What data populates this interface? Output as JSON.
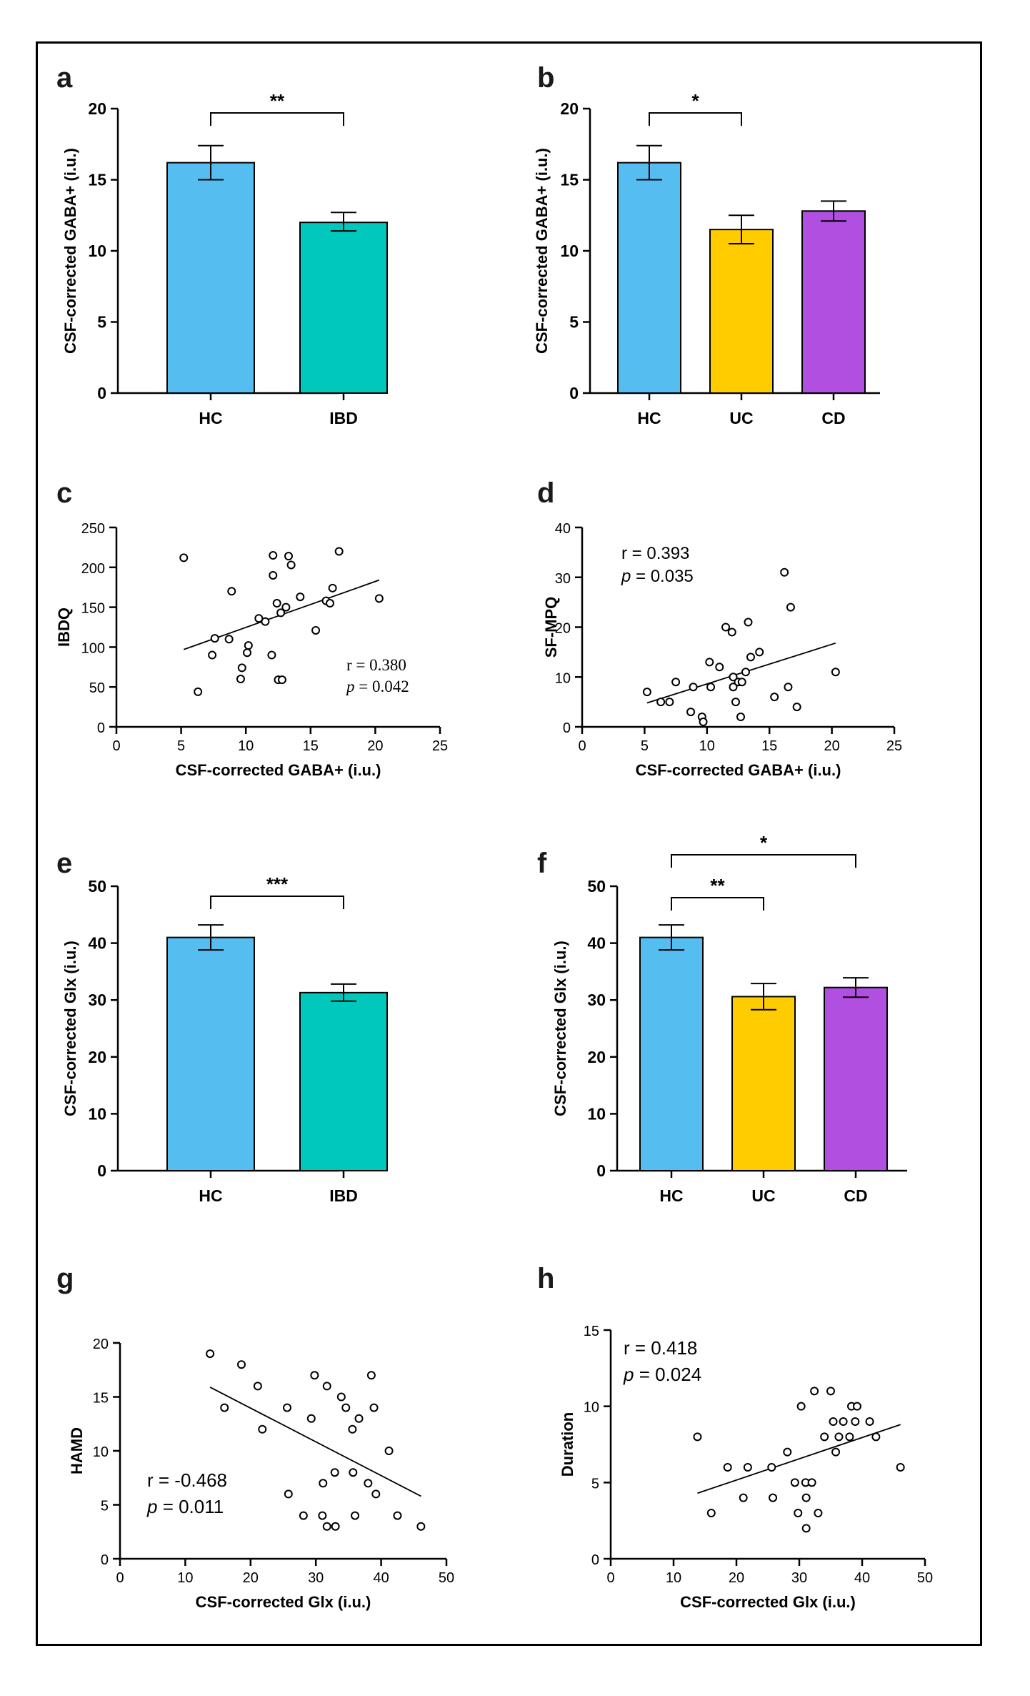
{
  "colors": {
    "HC": "#56bdf0",
    "IBD": "#00c8bc",
    "UC": "#ffcc00",
    "CD": "#b150e0",
    "axis": "#000000"
  },
  "chart_data": [
    {
      "panel": "a",
      "type": "bar",
      "ylabel": "CSF-corrected GABA+ (i.u.)",
      "xlabel": "",
      "ylim": [
        0,
        20
      ],
      "yticks": [
        0,
        5,
        10,
        15,
        20
      ],
      "categories": [
        "HC",
        "IBD"
      ],
      "values": [
        16.2,
        12.0
      ],
      "errors": [
        [
          15.0,
          17.4
        ],
        [
          11.4,
          12.7
        ]
      ],
      "significance": [
        {
          "from": 0,
          "to": 1,
          "label": "**"
        }
      ]
    },
    {
      "panel": "b",
      "type": "bar",
      "ylabel": "CSF-corrected GABA+ (i.u.)",
      "xlabel": "",
      "ylim": [
        0,
        20
      ],
      "yticks": [
        0,
        5,
        10,
        15,
        20
      ],
      "categories": [
        "HC",
        "UC",
        "CD"
      ],
      "values": [
        16.2,
        11.5,
        12.8
      ],
      "errors": [
        [
          15.0,
          17.4
        ],
        [
          10.5,
          12.5
        ],
        [
          12.1,
          13.5
        ]
      ],
      "significance": [
        {
          "from": 0,
          "to": 1,
          "label": "*"
        }
      ]
    },
    {
      "panel": "c",
      "type": "scatter",
      "ylabel": "IBDQ",
      "xlabel": "CSF-corrected GABA+ (i.u.)",
      "xlim": [
        0,
        25
      ],
      "ylim": [
        0,
        250
      ],
      "xticks": [
        0,
        5,
        10,
        15,
        20,
        25
      ],
      "yticks": [
        0,
        50,
        100,
        150,
        200,
        250
      ],
      "r_text": "r = 0.380",
      "p_label": "p",
      "p_value": " = 0.042",
      "stat_font": "serif",
      "points": [
        [
          5.2,
          212
        ],
        [
          6.3,
          44
        ],
        [
          7.4,
          90
        ],
        [
          7.6,
          111
        ],
        [
          8.7,
          110
        ],
        [
          8.9,
          170
        ],
        [
          9.6,
          60
        ],
        [
          9.7,
          74
        ],
        [
          10.1,
          93
        ],
        [
          10.2,
          102
        ],
        [
          11.0,
          136
        ],
        [
          11.5,
          132
        ],
        [
          12.0,
          90
        ],
        [
          12.1,
          215
        ],
        [
          12.1,
          190
        ],
        [
          12.4,
          155
        ],
        [
          12.5,
          59
        ],
        [
          12.7,
          143
        ],
        [
          12.8,
          59
        ],
        [
          13.1,
          150
        ],
        [
          13.3,
          214
        ],
        [
          13.5,
          203
        ],
        [
          14.2,
          163
        ],
        [
          15.4,
          121
        ],
        [
          16.2,
          158
        ],
        [
          16.5,
          155
        ],
        [
          16.7,
          174
        ],
        [
          17.2,
          220
        ],
        [
          20.3,
          161
        ]
      ],
      "fit": [
        [
          5.2,
          97
        ],
        [
          20.3,
          184
        ]
      ]
    },
    {
      "panel": "d",
      "type": "scatter",
      "ylabel": "SF-MPQ",
      "xlabel": "CSF-corrected GABA+ (i.u.)",
      "xlim": [
        0,
        25
      ],
      "ylim": [
        0,
        40
      ],
      "xticks": [
        0,
        5,
        10,
        15,
        20,
        25
      ],
      "yticks": [
        0,
        10,
        20,
        30,
        40
      ],
      "r_text": "r = 0.393",
      "p_label": "p",
      "p_value": " = 0.035",
      "stat_font": "sans-s",
      "points": [
        [
          5.2,
          7
        ],
        [
          6.3,
          5
        ],
        [
          7.0,
          5
        ],
        [
          7.5,
          9
        ],
        [
          8.7,
          3
        ],
        [
          8.9,
          8
        ],
        [
          9.6,
          2
        ],
        [
          9.7,
          1
        ],
        [
          10.2,
          13
        ],
        [
          10.3,
          8
        ],
        [
          11.0,
          12
        ],
        [
          11.5,
          20
        ],
        [
          12.0,
          19
        ],
        [
          12.1,
          10
        ],
        [
          12.1,
          8
        ],
        [
          12.3,
          5
        ],
        [
          12.5,
          9
        ],
        [
          12.7,
          2
        ],
        [
          12.8,
          9
        ],
        [
          13.1,
          11
        ],
        [
          13.3,
          21
        ],
        [
          13.5,
          14
        ],
        [
          14.2,
          15
        ],
        [
          15.4,
          6
        ],
        [
          16.2,
          31
        ],
        [
          16.5,
          8
        ],
        [
          16.7,
          24
        ],
        [
          17.2,
          4
        ],
        [
          20.3,
          11
        ]
      ],
      "fit": [
        [
          5.2,
          4.8
        ],
        [
          20.3,
          16.8
        ]
      ]
    },
    {
      "panel": "e",
      "type": "bar",
      "ylabel": "CSF-corrected Glx (i.u.)",
      "xlabel": "",
      "ylim": [
        0,
        50
      ],
      "yticks": [
        0,
        10,
        20,
        30,
        40,
        50
      ],
      "categories": [
        "HC",
        "IBD"
      ],
      "values": [
        41.0,
        31.3
      ],
      "errors": [
        [
          38.8,
          43.2
        ],
        [
          29.8,
          32.8
        ]
      ],
      "significance": [
        {
          "from": 0,
          "to": 1,
          "label": "***"
        }
      ]
    },
    {
      "panel": "f",
      "type": "bar",
      "ylabel": "CSF-corrected Glx (i.u.)",
      "xlabel": "",
      "ylim": [
        0,
        50
      ],
      "yticks": [
        0,
        10,
        20,
        30,
        40,
        50
      ],
      "categories": [
        "HC",
        "UC",
        "CD"
      ],
      "values": [
        41.0,
        30.6,
        32.2
      ],
      "errors": [
        [
          38.8,
          43.2
        ],
        [
          28.3,
          32.9
        ],
        [
          30.5,
          33.9
        ]
      ],
      "significance": [
        {
          "from": 0,
          "to": 1,
          "label": "**"
        },
        {
          "from": 0,
          "to": 2,
          "label": "*"
        }
      ]
    },
    {
      "panel": "g",
      "type": "scatter",
      "ylabel": "HAMD",
      "xlabel": "CSF-corrected Glx (i.u.)",
      "xlim": [
        0,
        50
      ],
      "ylim": [
        0,
        20
      ],
      "xticks": [
        0,
        10,
        20,
        30,
        40,
        50
      ],
      "yticks": [
        0,
        5,
        10,
        15,
        20
      ],
      "r_text": "r = -0.468",
      "p_label": "p",
      "p_value": " = 0.011",
      "stat_font": "sans",
      "points": [
        [
          13.8,
          19
        ],
        [
          16.0,
          14
        ],
        [
          18.6,
          18
        ],
        [
          21.1,
          16
        ],
        [
          21.8,
          12
        ],
        [
          25.6,
          14
        ],
        [
          25.8,
          6
        ],
        [
          28.1,
          4
        ],
        [
          29.3,
          13
        ],
        [
          29.8,
          17
        ],
        [
          31.0,
          4
        ],
        [
          31.1,
          7
        ],
        [
          31.7,
          16
        ],
        [
          31.7,
          3
        ],
        [
          32.9,
          8
        ],
        [
          33.0,
          3
        ],
        [
          33.9,
          15
        ],
        [
          34.6,
          14
        ],
        [
          35.6,
          12
        ],
        [
          35.7,
          8
        ],
        [
          36.0,
          4
        ],
        [
          36.6,
          13
        ],
        [
          38.0,
          7
        ],
        [
          38.5,
          17
        ],
        [
          38.9,
          14
        ],
        [
          39.2,
          6
        ],
        [
          41.2,
          10
        ],
        [
          42.5,
          4
        ],
        [
          46.1,
          3
        ]
      ],
      "fit": [
        [
          13.8,
          15.9
        ],
        [
          46.1,
          5.8
        ]
      ]
    },
    {
      "panel": "h",
      "type": "scatter",
      "ylabel": "Duration",
      "xlabel": "CSF-corrected Glx (i.u.)",
      "xlim": [
        0,
        50
      ],
      "ylim": [
        0,
        15
      ],
      "xticks": [
        0,
        10,
        20,
        30,
        40,
        50
      ],
      "yticks": [
        0,
        5,
        10,
        15
      ],
      "r_text": "r = 0.418",
      "p_label": "p",
      "p_value": " = 0.024",
      "stat_font": "sans",
      "points": [
        [
          13.8,
          8
        ],
        [
          16.0,
          3
        ],
        [
          18.6,
          6
        ],
        [
          21.1,
          4
        ],
        [
          21.8,
          6
        ],
        [
          25.6,
          6
        ],
        [
          25.8,
          4
        ],
        [
          28.1,
          7
        ],
        [
          29.3,
          5
        ],
        [
          29.8,
          3
        ],
        [
          30.3,
          10
        ],
        [
          31.0,
          5
        ],
        [
          31.1,
          2
        ],
        [
          31.1,
          4
        ],
        [
          32.0,
          5
        ],
        [
          32.4,
          11
        ],
        [
          33.0,
          3
        ],
        [
          34.0,
          8
        ],
        [
          35.0,
          11
        ],
        [
          35.4,
          9
        ],
        [
          35.8,
          7
        ],
        [
          36.3,
          8
        ],
        [
          37.0,
          9
        ],
        [
          38.0,
          8
        ],
        [
          38.3,
          10
        ],
        [
          38.9,
          9
        ],
        [
          39.2,
          10
        ],
        [
          41.2,
          9
        ],
        [
          42.2,
          8
        ],
        [
          46.1,
          6
        ]
      ],
      "fit": [
        [
          13.8,
          4.3
        ],
        [
          46.1,
          8.8
        ]
      ]
    }
  ]
}
